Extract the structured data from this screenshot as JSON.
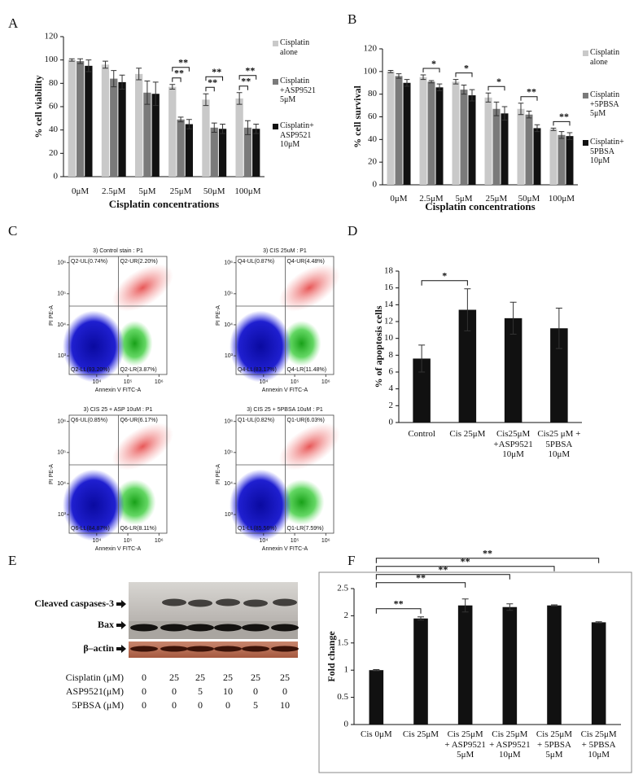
{
  "chart_data": [
    {
      "type": "bar",
      "panel": "A",
      "y_label": "% cell viability",
      "x_label": "Cisplatin concentrations",
      "categories": [
        "0μM",
        "2.5μM",
        "5μM",
        "25μM",
        "50μM",
        "100μM"
      ],
      "series": [
        {
          "name": "Cisplatin\nalone",
          "color": "#c9c9c9",
          "values": [
            100,
            96,
            88,
            77,
            66,
            67
          ],
          "errors": [
            1,
            3,
            5,
            2,
            5,
            5
          ]
        },
        {
          "name": "Cisplatin\n+ASP9521\n5μM",
          "color": "#7a7a7a",
          "values": [
            99,
            84,
            72,
            49,
            42,
            42
          ],
          "errors": [
            2,
            7,
            10,
            2,
            4,
            6
          ]
        },
        {
          "name": "Cisplatin+\nASP9521\n10μM",
          "color": "#111111",
          "values": [
            95,
            81,
            71,
            45,
            41,
            41
          ],
          "errors": [
            5,
            6,
            10,
            4,
            4,
            4
          ]
        }
      ],
      "ylim": [
        0,
        120
      ],
      "yticks": [
        0,
        20,
        40,
        60,
        80,
        100,
        120
      ],
      "legend": "right",
      "significance": [
        [
          null,
          null,
          null,
          "**",
          "**",
          "**"
        ],
        [
          null,
          null,
          null,
          "**",
          "**",
          "**"
        ]
      ]
    },
    {
      "type": "bar",
      "panel": "B",
      "y_label": "% cell survival",
      "x_label": "Cisplatin concentrations",
      "categories": [
        "0μM",
        "2.5μM",
        "5μM",
        "25μM",
        "50μM",
        "100μM"
      ],
      "series": [
        {
          "name": "Cisplatin\nalone",
          "color": "#c9c9c9",
          "values": [
            100,
            95,
            91,
            77,
            67,
            49
          ],
          "errors": [
            1,
            2,
            2,
            4,
            5,
            1
          ]
        },
        {
          "name": "Cisplatin\n+5PBSA\n5μM",
          "color": "#7a7a7a",
          "values": [
            96,
            91,
            84,
            67,
            62,
            44
          ],
          "errors": [
            2,
            1,
            4,
            6,
            3,
            3
          ]
        },
        {
          "name": "Cisplatin+\n5PBSA\n10μM",
          "color": "#111111",
          "values": [
            90,
            86,
            79,
            63,
            50,
            43
          ],
          "errors": [
            3,
            3,
            5,
            6,
            3,
            3
          ]
        }
      ],
      "ylim": [
        0,
        120
      ],
      "yticks": [
        0,
        20,
        40,
        60,
        80,
        100,
        120
      ],
      "legend": "right",
      "significance": [
        [
          null,
          "*",
          "*",
          "*",
          "**",
          "**"
        ]
      ]
    },
    {
      "type": "bar",
      "panel": "D",
      "y_label": "% of apoptosis cells",
      "categories": [
        "Control",
        "Cis 25μM",
        "Cis25μM\n+ASP9521\n10μM",
        "Cis25 μM +\n5PBSA\n10μM"
      ],
      "values": [
        7.6,
        13.4,
        12.4,
        11.2
      ],
      "errors": [
        1.6,
        2.5,
        1.9,
        2.4
      ],
      "color": "#111111",
      "ylim": [
        0,
        18
      ],
      "yticks": [
        0,
        2,
        4,
        6,
        8,
        10,
        12,
        14,
        16,
        18
      ],
      "significance": [
        null,
        "*",
        null,
        null
      ]
    },
    {
      "type": "bar",
      "panel": "F",
      "y_label": "Fold change",
      "categories": [
        "Cis 0μM",
        "Cis 25μM",
        "Cis 25μM\n+ ASP9521\n5μM",
        "Cis 25μM\n+ ASP9521\n10μM",
        "Cis 25μM\n+ 5PBSA\n5μM",
        "Cis 25μM\n+ 5PBSA\n10μM"
      ],
      "values": [
        1.0,
        1.95,
        2.19,
        2.16,
        2.19,
        1.88
      ],
      "errors": [
        0.01,
        0.03,
        0.12,
        0.06,
        0.01,
        0.01
      ],
      "color": "#111111",
      "ylim": [
        0,
        2.5
      ],
      "yticks": [
        0,
        0.5,
        1,
        1.5,
        2,
        2.5
      ],
      "significance": [
        null,
        "**",
        "**",
        "**",
        "**",
        "**"
      ]
    }
  ],
  "flow_cytometry": {
    "panel": "C",
    "x_label": "Annexin V FITC-A",
    "y_label": "PI PE-A",
    "xlim": [
      1300,
      1800000
    ],
    "ylim": [
      250,
      1600000
    ],
    "xticks": [
      {
        "value": 10000,
        "label": "10⁴"
      },
      {
        "value": 100000,
        "label": "10⁵"
      },
      {
        "value": 1000000,
        "label": "10⁶"
      }
    ],
    "yticks": [
      {
        "value": 1000,
        "label": "10³"
      },
      {
        "value": 10000,
        "label": "10⁴"
      },
      {
        "value": 100000,
        "label": "10⁵"
      },
      {
        "value": 1000000,
        "label": "10⁶"
      }
    ],
    "gate": {
      "x": 50000,
      "y": 40000
    },
    "panels": [
      {
        "title": "3) Control stain : P1",
        "quadrants": {
          "ul": "Q2-UL(0.74%)",
          "ur": "Q2-UR(2.20%)",
          "ll": "Q2-LL(93.20%)",
          "lr": "Q2-LR(3.87%)"
        }
      },
      {
        "title": "3) CIS 25uM : P1",
        "quadrants": {
          "ul": "Q4-UL(0.87%)",
          "ur": "Q4-UR(4.48%)",
          "ll": "Q4-LL(83.17%)",
          "lr": "Q4-LR(11.48%)"
        }
      },
      {
        "title": "3) CIS 25 + ASP 10uM : P1",
        "quadrants": {
          "ul": "Q6-UL(0.85%)",
          "ur": "Q6-UR(6.17%)",
          "ll": "Q6-LL(84.87%)",
          "lr": "Q6-LR(8.11%)"
        }
      },
      {
        "title": "3) CIS 25 + 5PBSA 10uM : P1",
        "quadrants": {
          "ul": "Q1-UL(0.82%)",
          "ur": "Q1-UR(6.03%)",
          "ll": "Q1-LL(85.56%)",
          "lr": "Q1-LR(7.59%)"
        }
      }
    ]
  },
  "western_blot": {
    "panel": "E",
    "bands": [
      "Cleaved caspases-3",
      "Bax",
      "β–actin"
    ],
    "table": {
      "rows": [
        {
          "label": "Cisplatin (μM)",
          "values": [
            0,
            25,
            25,
            25,
            25,
            25
          ]
        },
        {
          "label": "ASP9521(μM)",
          "values": [
            0,
            0,
            5,
            10,
            0,
            0
          ]
        },
        {
          "label": "5PBSA (μM)",
          "values": [
            0,
            0,
            0,
            0,
            5,
            10
          ]
        }
      ]
    }
  }
}
